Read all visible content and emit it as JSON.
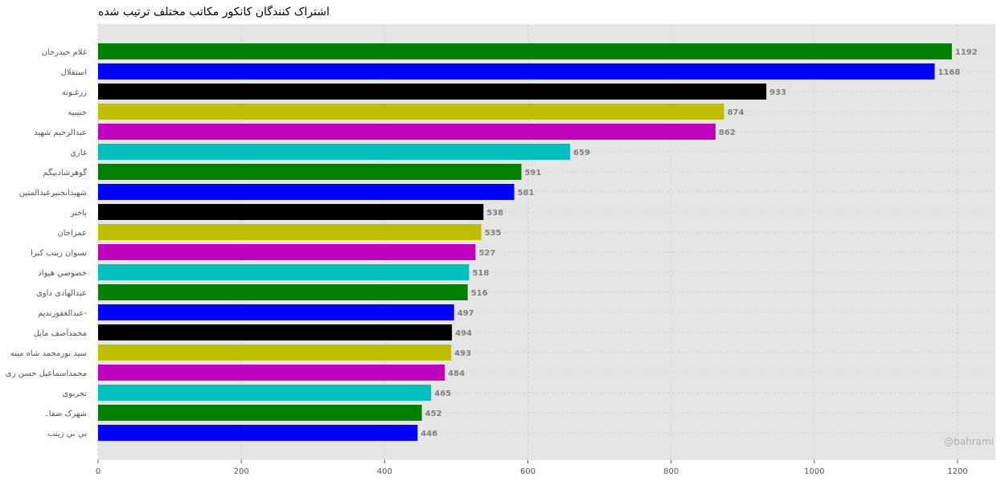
{
  "chart_data": {
    "type": "bar",
    "orientation": "horizontal",
    "title": "اشتراک کنندگان کانکور مکاتب مختلف ترتیب شده",
    "categories": [
      "غلام حیدرخان",
      "استقلال",
      "زرغـونه",
      "حبیبیه",
      "عبدالرحیم شهید",
      "غازي",
      "گوهرشادبیگم",
      "شهیدانجنیرعبدالمتین",
      "باختر",
      "عمراخان",
      "نسوان زینب کبرا",
      "خصوصي هیواد",
      "عبدالهادی داوی",
      "عبدالغفورندیم-",
      "محمدآصف مایل",
      "سید نورمحمد شاه مینه",
      "محمداسماعیل حسن زی",
      "تجربوی",
      "شهرک صفا۔",
      "بي بي زینب"
    ],
    "values": [
      1192,
      1168,
      933,
      874,
      862,
      659,
      591,
      581,
      538,
      535,
      527,
      518,
      516,
      497,
      494,
      493,
      484,
      465,
      452,
      446
    ],
    "bar_colors": [
      "#008000",
      "#0000ff",
      "#000000",
      "#bfbf00",
      "#bf00bf",
      "#00bfbf"
    ],
    "xticks": [
      0,
      200,
      400,
      600,
      800,
      1000,
      1200
    ],
    "xlim": [
      0,
      1250
    ],
    "grid": true,
    "background": "#e5e5e5",
    "watermark": "@bahrami"
  }
}
